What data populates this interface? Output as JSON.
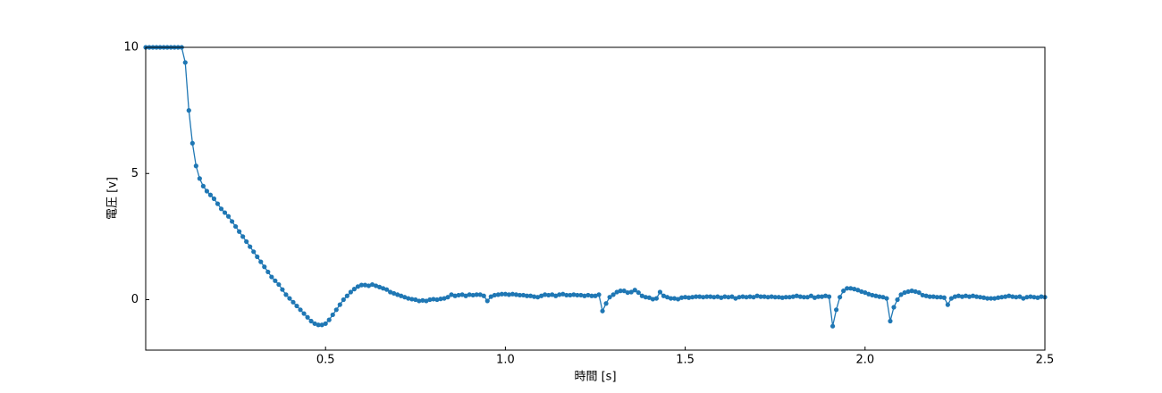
{
  "chart_data": {
    "type": "line",
    "x_label": "時間 [s]",
    "y_label": "電圧 [v]",
    "color": "#1f77b4",
    "xlim": [
      0,
      2.5
    ],
    "xticks": [
      0.5,
      {
        "value": 1,
        "label": "1.0"
      },
      1.5,
      {
        "value": 2,
        "label": "2.0"
      },
      2.5
    ],
    "ylim": [
      -2,
      10
    ],
    "yticks": [
      0,
      5,
      10
    ],
    "x": [
      0,
      0.01,
      0.02,
      0.03,
      0.04,
      0.05,
      0.06,
      0.07,
      0.08,
      0.09,
      0.1,
      0.11,
      0.12,
      0.13,
      0.14,
      0.15,
      0.16,
      0.17,
      0.18,
      0.19,
      0.2,
      0.21,
      0.22,
      0.23,
      0.24,
      0.25,
      0.26,
      0.27,
      0.28,
      0.29,
      0.3,
      0.31,
      0.32,
      0.33,
      0.34,
      0.35,
      0.36,
      0.37,
      0.38,
      0.39,
      0.4,
      0.41,
      0.42,
      0.43,
      0.44,
      0.45,
      0.46,
      0.47,
      0.48,
      0.49,
      0.5,
      0.51,
      0.52,
      0.53,
      0.54,
      0.55,
      0.56,
      0.57,
      0.58,
      0.59,
      0.6,
      0.61,
      0.62,
      0.63,
      0.64,
      0.65,
      0.66,
      0.67,
      0.68,
      0.69,
      0.7,
      0.71,
      0.72,
      0.73,
      0.74,
      0.75,
      0.76,
      0.77,
      0.78,
      0.79,
      0.8,
      0.81,
      0.82,
      0.83,
      0.84,
      0.85,
      0.86,
      0.87,
      0.88,
      0.89,
      0.9,
      0.91,
      0.92,
      0.93,
      0.94,
      0.95,
      0.96,
      0.97,
      0.98,
      0.99,
      1,
      1.01,
      1.02,
      1.03,
      1.04,
      1.05,
      1.06,
      1.07,
      1.08,
      1.09,
      1.1,
      1.11,
      1.12,
      1.13,
      1.14,
      1.15,
      1.16,
      1.17,
      1.18,
      1.19,
      1.2,
      1.21,
      1.22,
      1.23,
      1.24,
      1.25,
      1.26,
      1.27,
      1.28,
      1.29,
      1.3,
      1.31,
      1.32,
      1.33,
      1.34,
      1.35,
      1.36,
      1.37,
      1.38,
      1.39,
      1.4,
      1.41,
      1.42,
      1.43,
      1.44,
      1.45,
      1.46,
      1.47,
      1.48,
      1.49,
      1.5,
      1.51,
      1.52,
      1.53,
      1.54,
      1.55,
      1.56,
      1.57,
      1.58,
      1.59,
      1.6,
      1.61,
      1.62,
      1.63,
      1.64,
      1.65,
      1.66,
      1.67,
      1.68,
      1.69,
      1.7,
      1.71,
      1.72,
      1.73,
      1.74,
      1.75,
      1.76,
      1.77,
      1.78,
      1.79,
      1.8,
      1.81,
      1.82,
      1.83,
      1.84,
      1.85,
      1.86,
      1.87,
      1.88,
      1.89,
      1.9,
      1.91,
      1.92,
      1.93,
      1.94,
      1.95,
      1.96,
      1.97,
      1.98,
      1.99,
      2,
      2.01,
      2.02,
      2.03,
      2.04,
      2.05,
      2.06,
      2.07,
      2.08,
      2.09,
      2.1,
      2.11,
      2.12,
      2.13,
      2.14,
      2.15,
      2.16,
      2.17,
      2.18,
      2.19,
      2.2,
      2.21,
      2.22,
      2.23,
      2.24,
      2.25,
      2.26,
      2.27,
      2.28,
      2.29,
      2.3,
      2.31,
      2.32,
      2.33,
      2.34,
      2.35,
      2.36,
      2.37,
      2.38,
      2.39,
      2.4,
      2.41,
      2.42,
      2.43,
      2.44,
      2.45,
      2.46,
      2.47,
      2.48,
      2.49,
      2.5
    ],
    "values": [
      10,
      10,
      10,
      10,
      10,
      10,
      10,
      10,
      10,
      10,
      10,
      9.4,
      7.5,
      6.2,
      5.3,
      4.8,
      4.5,
      4.3,
      4.15,
      4.0,
      3.8,
      3.6,
      3.45,
      3.3,
      3.1,
      2.9,
      2.7,
      2.5,
      2.3,
      2.1,
      1.9,
      1.7,
      1.5,
      1.3,
      1.1,
      0.9,
      0.75,
      0.6,
      0.4,
      0.2,
      0.05,
      -0.1,
      -0.25,
      -0.4,
      -0.55,
      -0.7,
      -0.85,
      -0.95,
      -1.0,
      -1.0,
      -0.95,
      -0.8,
      -0.6,
      -0.4,
      -0.2,
      0.0,
      0.15,
      0.3,
      0.42,
      0.52,
      0.58,
      0.58,
      0.55,
      0.6,
      0.55,
      0.5,
      0.45,
      0.4,
      0.3,
      0.25,
      0.2,
      0.15,
      0.1,
      0.05,
      0.02,
      0.0,
      -0.05,
      -0.03,
      -0.05,
      0.0,
      0.02,
      0.0,
      0.03,
      0.05,
      0.1,
      0.2,
      0.15,
      0.18,
      0.2,
      0.15,
      0.2,
      0.18,
      0.2,
      0.2,
      0.15,
      -0.05,
      0.12,
      0.18,
      0.2,
      0.22,
      0.22,
      0.2,
      0.22,
      0.2,
      0.18,
      0.18,
      0.15,
      0.15,
      0.12,
      0.1,
      0.15,
      0.2,
      0.18,
      0.2,
      0.15,
      0.2,
      0.22,
      0.18,
      0.18,
      0.2,
      0.18,
      0.18,
      0.15,
      0.18,
      0.15,
      0.15,
      0.2,
      -0.45,
      -0.15,
      0.1,
      0.2,
      0.3,
      0.35,
      0.35,
      0.28,
      0.3,
      0.38,
      0.28,
      0.15,
      0.1,
      0.08,
      0.02,
      0.05,
      0.3,
      0.15,
      0.1,
      0.05,
      0.05,
      0.02,
      0.08,
      0.1,
      0.08,
      0.1,
      0.12,
      0.12,
      0.1,
      0.12,
      0.12,
      0.1,
      0.12,
      0.08,
      0.12,
      0.1,
      0.12,
      0.05,
      0.1,
      0.12,
      0.1,
      0.12,
      0.1,
      0.15,
      0.12,
      0.12,
      0.1,
      0.12,
      0.1,
      0.1,
      0.08,
      0.1,
      0.1,
      0.12,
      0.15,
      0.12,
      0.1,
      0.1,
      0.15,
      0.08,
      0.12,
      0.12,
      0.15,
      0.12,
      -1.05,
      -0.4,
      0.1,
      0.35,
      0.45,
      0.45,
      0.42,
      0.38,
      0.32,
      0.28,
      0.22,
      0.18,
      0.15,
      0.12,
      0.1,
      0.05,
      -0.85,
      -0.3,
      0.0,
      0.2,
      0.28,
      0.32,
      0.35,
      0.32,
      0.28,
      0.18,
      0.15,
      0.12,
      0.12,
      0.1,
      0.1,
      0.08,
      -0.2,
      0.05,
      0.12,
      0.15,
      0.12,
      0.15,
      0.12,
      0.15,
      0.12,
      0.1,
      0.08,
      0.05,
      0.05,
      0.05,
      0.08,
      0.1,
      0.12,
      0.15,
      0.12,
      0.1,
      0.12,
      0.05,
      0.1,
      0.12,
      0.1,
      0.08,
      0.12,
      0.1
    ]
  }
}
